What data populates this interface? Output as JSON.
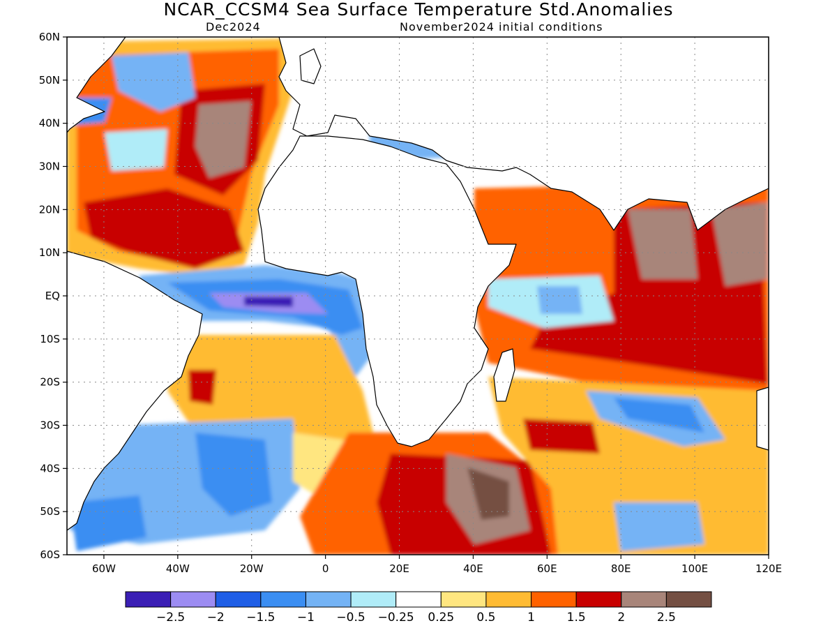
{
  "title": "NCAR_CCSM4 Sea Surface Temperature Std.Anomalies",
  "valid_month": "Dec2024",
  "initial_conditions": "November2024 initial conditions",
  "lat_labels": [
    "60N",
    "50N",
    "40N",
    "30N",
    "20N",
    "10N",
    "EQ",
    "10S",
    "20S",
    "30S",
    "40S",
    "50S",
    "60S"
  ],
  "lon_labels": [
    "60W",
    "40W",
    "20W",
    "0",
    "20E",
    "40E",
    "60E",
    "80E",
    "100E",
    "120E"
  ],
  "colorbar": {
    "colors": [
      "#3b1fb5",
      "#9c8cf2",
      "#1f5ee6",
      "#3b8ef2",
      "#74b3f5",
      "#b0ecf8",
      "#ffffff",
      "#ffe680",
      "#ffbb33",
      "#ff6200",
      "#c80000",
      "#a8857a",
      "#744f43"
    ],
    "labels": [
      "−2.5",
      "−2",
      "−1.5",
      "−1",
      "−0.5",
      "−0.25",
      "0.25",
      "0.5",
      "1",
      "1.5",
      "2",
      "2.5"
    ]
  },
  "regions": [
    {
      "name": "north-atlantic-warm-anomaly",
      "color": "#ff6200"
    },
    {
      "name": "subtropical-atlantic-strong-warm-anomaly",
      "color": "#c80000"
    },
    {
      "name": "equatorial-atlantic-cold-anomaly",
      "color": "#1f5ee6"
    },
    {
      "name": "indian-ocean-warm-anomaly",
      "color": "#c80000"
    },
    {
      "name": "south-atlantic-cold-anomaly",
      "color": "#3b8ef2"
    }
  ]
}
